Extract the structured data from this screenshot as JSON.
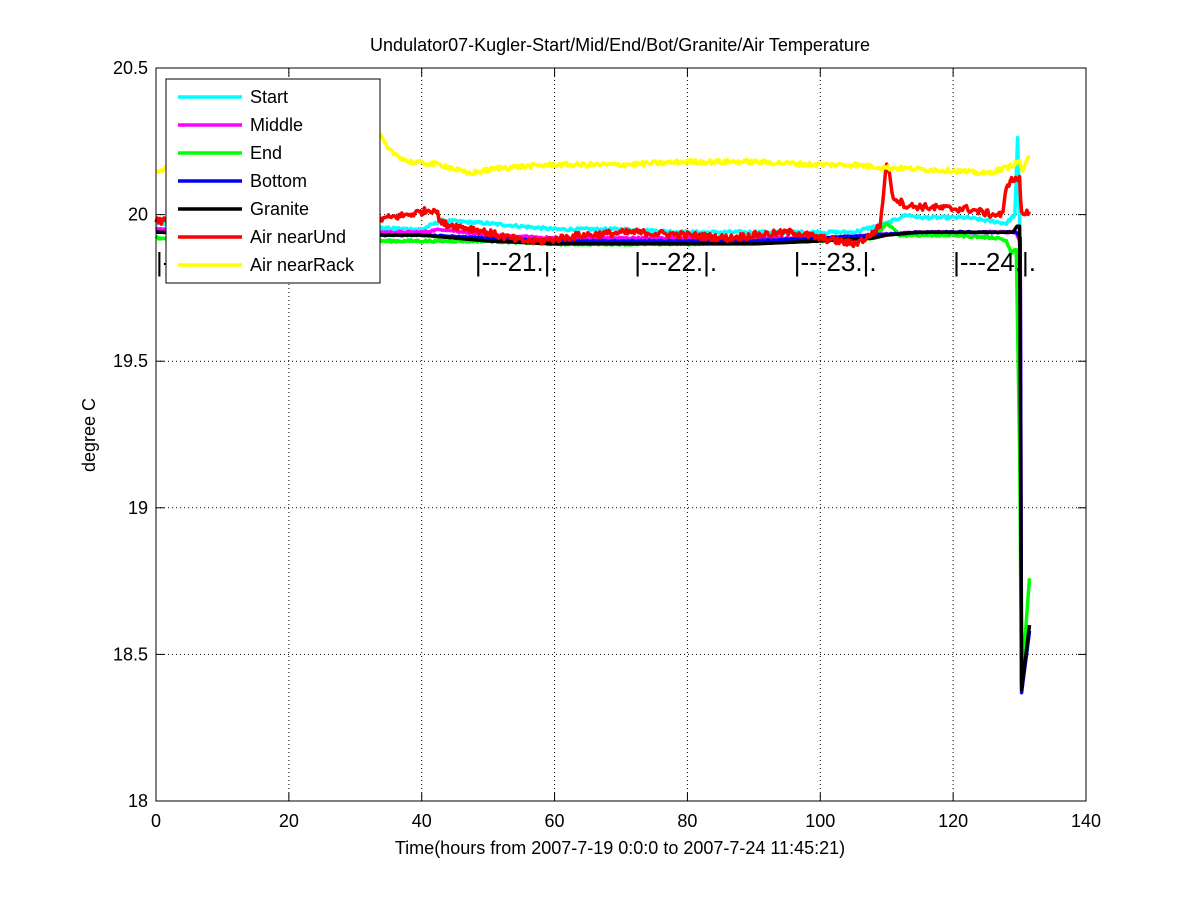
{
  "chart_data": {
    "type": "line",
    "title": "Undulator07-Kugler-Start/Mid/End/Bot/Granite/Air Temperature",
    "xlabel": "Time(hours from 2007-7-19 0:0:0 to 2007-7-24 11:45:21)",
    "ylabel": "degree C",
    "xlim": [
      0,
      140
    ],
    "ylim": [
      18,
      20.5
    ],
    "xticks": [
      0,
      20,
      40,
      60,
      80,
      100,
      120,
      140
    ],
    "yticks": [
      18,
      18.5,
      19,
      19.5,
      20,
      20.5
    ],
    "grid": true,
    "legend_position": "top-left",
    "day_markers": [
      {
        "label": "|---20.|.",
        "x": 0
      },
      {
        "label": "|---21.|.",
        "x": 48
      },
      {
        "label": "|---22.|.",
        "x": 72
      },
      {
        "label": "|---23.|.",
        "x": 96
      },
      {
        "label": "|---24.|.",
        "x": 120
      }
    ],
    "series": [
      {
        "name": "Start",
        "color": "#00ffff",
        "noise": 0.005,
        "points": [
          [
            0,
            19.97
          ],
          [
            20,
            19.96
          ],
          [
            40,
            19.95
          ],
          [
            43,
            19.98
          ],
          [
            50,
            19.97
          ],
          [
            60,
            19.95
          ],
          [
            70,
            19.95
          ],
          [
            80,
            19.94
          ],
          [
            90,
            19.94
          ],
          [
            100,
            19.94
          ],
          [
            105,
            19.94
          ],
          [
            110,
            19.97
          ],
          [
            113,
            20.0
          ],
          [
            115,
            19.99
          ],
          [
            122,
            19.99
          ],
          [
            128,
            19.97
          ],
          [
            129.3,
            20.0
          ],
          [
            129.7,
            20.26
          ],
          [
            130.0,
            19.99
          ],
          [
            130.3,
            18.4
          ],
          [
            131.5,
            18.6
          ]
        ]
      },
      {
        "name": "Middle",
        "color": "#ff00ff",
        "noise": 0.003,
        "points": [
          [
            0,
            19.95
          ],
          [
            20,
            19.94
          ],
          [
            40,
            19.94
          ],
          [
            43,
            19.95
          ],
          [
            50,
            19.93
          ],
          [
            60,
            19.92
          ],
          [
            70,
            19.92
          ],
          [
            80,
            19.92
          ],
          [
            90,
            19.92
          ],
          [
            100,
            19.92
          ],
          [
            108,
            19.93
          ],
          [
            115,
            19.94
          ],
          [
            122,
            19.94
          ],
          [
            128,
            19.94
          ],
          [
            129.5,
            19.94
          ],
          [
            130.1,
            19.9
          ],
          [
            130.3,
            18.4
          ],
          [
            131.5,
            18.58
          ]
        ]
      },
      {
        "name": "End",
        "color": "#00ff00",
        "noise": 0.004,
        "points": [
          [
            0,
            19.92
          ],
          [
            20,
            19.91
          ],
          [
            40,
            19.91
          ],
          [
            50,
            19.91
          ],
          [
            60,
            19.9
          ],
          [
            70,
            19.9
          ],
          [
            80,
            19.9
          ],
          [
            90,
            19.91
          ],
          [
            100,
            19.91
          ],
          [
            108,
            19.92
          ],
          [
            110,
            19.97
          ],
          [
            112,
            19.93
          ],
          [
            120,
            19.93
          ],
          [
            127,
            19.92
          ],
          [
            128,
            19.91
          ],
          [
            128.7,
            19.87
          ],
          [
            129.5,
            19.88
          ],
          [
            130.0,
            19.2
          ],
          [
            130.3,
            18.4
          ],
          [
            131.5,
            18.76
          ]
        ]
      },
      {
        "name": "Bottom",
        "color": "#0000ff",
        "noise": 0.002,
        "points": [
          [
            0,
            19.94
          ],
          [
            20,
            19.93
          ],
          [
            40,
            19.93
          ],
          [
            50,
            19.92
          ],
          [
            60,
            19.91
          ],
          [
            70,
            19.91
          ],
          [
            80,
            19.91
          ],
          [
            90,
            19.91
          ],
          [
            100,
            19.92
          ],
          [
            108,
            19.93
          ],
          [
            115,
            19.94
          ],
          [
            122,
            19.94
          ],
          [
            129.5,
            19.94
          ],
          [
            130.1,
            19.92
          ],
          [
            130.3,
            18.37
          ],
          [
            131.5,
            18.58
          ]
        ]
      },
      {
        "name": "Granite",
        "color": "#000000",
        "noise": 0.0,
        "points": [
          [
            0,
            19.94
          ],
          [
            20,
            19.93
          ],
          [
            40,
            19.93
          ],
          [
            50,
            19.91
          ],
          [
            60,
            19.9
          ],
          [
            70,
            19.9
          ],
          [
            80,
            19.9
          ],
          [
            90,
            19.9
          ],
          [
            100,
            19.91
          ],
          [
            108,
            19.92
          ],
          [
            110,
            19.93
          ],
          [
            115,
            19.94
          ],
          [
            122,
            19.94
          ],
          [
            129,
            19.94
          ],
          [
            129.6,
            19.96
          ],
          [
            130.0,
            19.96
          ],
          [
            130.3,
            18.38
          ],
          [
            131.5,
            18.6
          ]
        ]
      },
      {
        "name": "Air nearUnd",
        "color": "#ff0000",
        "noise": 0.012,
        "points": [
          [
            0,
            19.98
          ],
          [
            10,
            19.96
          ],
          [
            30,
            19.97
          ],
          [
            38,
            20.0
          ],
          [
            42,
            20.02
          ],
          [
            43,
            19.97
          ],
          [
            48,
            19.95
          ],
          [
            55,
            19.91
          ],
          [
            58,
            19.91
          ],
          [
            64,
            19.93
          ],
          [
            72,
            19.94
          ],
          [
            80,
            19.93
          ],
          [
            86,
            19.92
          ],
          [
            90,
            19.93
          ],
          [
            96,
            19.94
          ],
          [
            100,
            19.92
          ],
          [
            105,
            19.9
          ],
          [
            107,
            19.92
          ],
          [
            109,
            19.96
          ],
          [
            110,
            20.18
          ],
          [
            111,
            20.06
          ],
          [
            113,
            20.03
          ],
          [
            120,
            20.02
          ],
          [
            122,
            20.02
          ],
          [
            126,
            20.0
          ],
          [
            127.5,
            20.0
          ],
          [
            128,
            20.1
          ],
          [
            129,
            20.12
          ],
          [
            130.0,
            20.12
          ],
          [
            130.3,
            20.0
          ],
          [
            131.5,
            20.01
          ]
        ]
      },
      {
        "name": "Air nearRack",
        "color": "#ffff00",
        "noise": 0.008,
        "points": [
          [
            0,
            20.15
          ],
          [
            5,
            20.17
          ],
          [
            15,
            20.19
          ],
          [
            25,
            20.2
          ],
          [
            30,
            20.25
          ],
          [
            33,
            20.3
          ],
          [
            35,
            20.22
          ],
          [
            38,
            20.18
          ],
          [
            43,
            20.17
          ],
          [
            47,
            20.14
          ],
          [
            52,
            20.16
          ],
          [
            60,
            20.17
          ],
          [
            70,
            20.17
          ],
          [
            80,
            20.18
          ],
          [
            90,
            20.18
          ],
          [
            100,
            20.17
          ],
          [
            105,
            20.17
          ],
          [
            110,
            20.16
          ],
          [
            120,
            20.15
          ],
          [
            125,
            20.14
          ],
          [
            128,
            20.16
          ],
          [
            129,
            20.17
          ],
          [
            130.0,
            20.18
          ],
          [
            130.5,
            20.15
          ],
          [
            131.5,
            20.2
          ]
        ]
      }
    ]
  }
}
